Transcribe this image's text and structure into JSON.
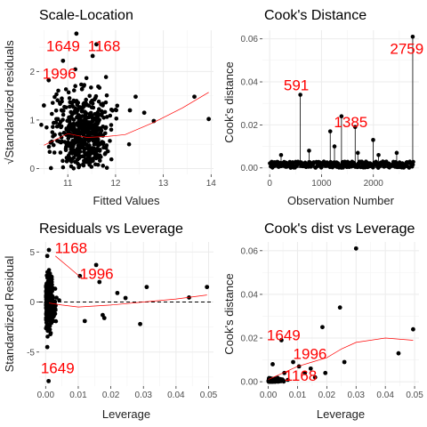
{
  "chart_data": [
    {
      "type": "scatter",
      "title": "Scale-Location",
      "xlabel": "Fitted Values",
      "ylabel": "√Standardized residuals",
      "xlim": [
        10.4,
        14.05
      ],
      "ylim": [
        -0.12,
        2.85
      ],
      "xticks": [
        "11",
        "12",
        "13",
        "14"
      ],
      "xtick_values": [
        11,
        12,
        13,
        14
      ],
      "yticks": [
        "0",
        "1",
        "2"
      ],
      "ytick_values": [
        0,
        1,
        2
      ],
      "grid": true,
      "cloud": {
        "x_center": 11.3,
        "x_spread": 0.3,
        "y_center": 0.72,
        "y_spread": 0.42,
        "count": 520
      },
      "points": [
        {
          "x": 10.9,
          "y": 2.22
        },
        {
          "x": 11.52,
          "y": 2.32
        },
        {
          "x": 11.6,
          "y": 2.56
        },
        {
          "x": 10.6,
          "y": 1.82
        },
        {
          "x": 11.18,
          "y": 2.78
        },
        {
          "x": 12.6,
          "y": 1.15
        },
        {
          "x": 13.65,
          "y": 1.48
        },
        {
          "x": 13.95,
          "y": 1.02
        },
        {
          "x": 12.42,
          "y": 1.48
        },
        {
          "x": 12.8,
          "y": 0.98
        },
        {
          "x": 12.3,
          "y": 1.2
        },
        {
          "x": 10.5,
          "y": 1.3
        }
      ],
      "smooth": {
        "x": [
          10.5,
          11.0,
          11.4,
          11.8,
          12.2,
          12.8,
          13.4,
          13.95
        ],
        "y": [
          0.48,
          0.72,
          0.64,
          0.66,
          0.7,
          0.95,
          1.25,
          1.57
        ]
      },
      "annotations": [
        {
          "text": "1649",
          "x": 10.55,
          "y": 2.42
        },
        {
          "text": "1168",
          "x": 11.42,
          "y": 2.42
        },
        {
          "text": "1996",
          "x": 10.47,
          "y": 1.85
        }
      ]
    },
    {
      "type": "scatter",
      "title": "Cook's Distance",
      "xlabel": "Observation Number",
      "ylabel": "Cook's distance",
      "xlim": [
        -140,
        2880
      ],
      "ylim": [
        -0.003,
        0.064
      ],
      "xticks": [
        "0",
        "1000",
        "2000"
      ],
      "xtick_values": [
        0,
        1000,
        2000
      ],
      "yticks": [
        "0.00",
        "0.02",
        "0.04",
        "0.06"
      ],
      "ytick_values": [
        0,
        0.02,
        0.04,
        0.06
      ],
      "grid": true,
      "style": "stems",
      "base": {
        "count": 230,
        "max": 0.003
      },
      "spikes": [
        {
          "x": 591,
          "y": 0.034
        },
        {
          "x": 1168,
          "y": 0.017
        },
        {
          "x": 1385,
          "y": 0.024
        },
        {
          "x": 1649,
          "y": 0.019
        },
        {
          "x": 1996,
          "y": 0.013
        },
        {
          "x": 2759,
          "y": 0.061
        },
        {
          "x": 220,
          "y": 0.006
        },
        {
          "x": 760,
          "y": 0.008
        },
        {
          "x": 1250,
          "y": 0.01
        },
        {
          "x": 1700,
          "y": 0.007
        },
        {
          "x": 2100,
          "y": 0.006
        },
        {
          "x": 2450,
          "y": 0.007
        }
      ],
      "annotations": [
        {
          "text": "591",
          "x": 270,
          "y": 0.036
        },
        {
          "text": "1385",
          "x": 1240,
          "y": 0.019
        },
        {
          "text": "2759",
          "x": 2320,
          "y": 0.053
        }
      ]
    },
    {
      "type": "scatter",
      "title": "Residuals vs Leverage",
      "xlabel": "Leverage",
      "ylabel": "Standardized Residual",
      "xlim": [
        -0.002,
        0.0515
      ],
      "ylim": [
        -8.4,
        6.0
      ],
      "xticks": [
        "0.00",
        "0.01",
        "0.02",
        "0.03",
        "0.04",
        "0.05"
      ],
      "xtick_values": [
        0,
        0.01,
        0.02,
        0.03,
        0.04,
        0.05
      ],
      "yticks": [
        "-5",
        "0",
        "5"
      ],
      "ytick_values": [
        -5,
        0,
        5
      ],
      "grid": true,
      "hline": 0,
      "cloud": {
        "x_center": 0.0012,
        "x_spread": 0.0012,
        "y_center": 0.0,
        "y_spread": 1.1,
        "count": 420
      },
      "points": [
        {
          "x": 0.001,
          "y": 5.2
        },
        {
          "x": 0.0009,
          "y": -7.9
        },
        {
          "x": 0.0105,
          "y": 2.6
        },
        {
          "x": 0.0155,
          "y": 3.7
        },
        {
          "x": 0.0165,
          "y": 2.0
        },
        {
          "x": 0.018,
          "y": -1.6
        },
        {
          "x": 0.022,
          "y": 0.9
        },
        {
          "x": 0.0245,
          "y": 0.4
        },
        {
          "x": 0.031,
          "y": 1.5
        },
        {
          "x": 0.029,
          "y": -2.2
        },
        {
          "x": 0.0175,
          "y": -1.3
        },
        {
          "x": 0.012,
          "y": -1.9
        },
        {
          "x": 0.0495,
          "y": 1.5
        },
        {
          "x": 0.044,
          "y": 0.45
        },
        {
          "x": 0.0005,
          "y": -4.5
        },
        {
          "x": 0.0005,
          "y": 4.6
        }
      ],
      "smooth": {
        "x": [
          0.001,
          0.005,
          0.01,
          0.02,
          0.03,
          0.04,
          0.0495
        ],
        "y": [
          -0.1,
          -0.3,
          -0.5,
          -0.3,
          0.0,
          0.3,
          0.7
        ]
      },
      "smooth2": {
        "x": [
          0.003,
          0.007,
          0.011
        ],
        "y": [
          4.6,
          3.5,
          2.4
        ]
      },
      "annotations": [
        {
          "text": "1168",
          "x": 0.0028,
          "y": 4.9
        },
        {
          "text": "1996",
          "x": 0.0105,
          "y": 2.3
        },
        {
          "text": "1649",
          "x": -0.0015,
          "y": -7.1
        }
      ]
    },
    {
      "type": "scatter",
      "title": "Cook's dist vs Leverage",
      "xlabel": "Leverage",
      "ylabel": "Cook's distance",
      "xlim": [
        -0.002,
        0.0515
      ],
      "ylim": [
        -0.002,
        0.064
      ],
      "xticks": [
        "0.00",
        "0.01",
        "0.02",
        "0.03",
        "0.04",
        "0.05"
      ],
      "xtick_values": [
        0,
        0.01,
        0.02,
        0.03,
        0.04,
        0.05
      ],
      "yticks": [
        "0.00",
        "0.02",
        "0.04",
        "0.06"
      ],
      "ytick_values": [
        0,
        0.02,
        0.04,
        0.06
      ],
      "grid": true,
      "cloud": {
        "x_center": 0.0022,
        "x_spread": 0.0022,
        "y_center": 0.0005,
        "y_spread": 0.0006,
        "count": 300
      },
      "points": [
        {
          "x": 0.03,
          "y": 0.061
        },
        {
          "x": 0.0245,
          "y": 0.034
        },
        {
          "x": 0.0495,
          "y": 0.024
        },
        {
          "x": 0.0185,
          "y": 0.025
        },
        {
          "x": 0.0045,
          "y": 0.019
        },
        {
          "x": 0.0105,
          "y": 0.007
        },
        {
          "x": 0.0145,
          "y": 0.006
        },
        {
          "x": 0.0195,
          "y": 0.004
        },
        {
          "x": 0.026,
          "y": 0.009
        },
        {
          "x": 0.0445,
          "y": 0.013
        },
        {
          "x": 0.0015,
          "y": 0.008
        },
        {
          "x": 0.0055,
          "y": 0.004
        },
        {
          "x": 0.0085,
          "y": 0.009
        },
        {
          "x": 0.0125,
          "y": 0.004
        },
        {
          "x": 0.016,
          "y": 0.002
        }
      ],
      "smooth": {
        "x": [
          0.0,
          0.005,
          0.01,
          0.015,
          0.02,
          0.025,
          0.03,
          0.04,
          0.0495
        ],
        "y": [
          0.001,
          0.004,
          0.007,
          0.009,
          0.011,
          0.015,
          0.018,
          0.02,
          0.019
        ]
      },
      "annotations": [
        {
          "text": "1649",
          "x": -0.0005,
          "y": 0.019
        },
        {
          "text": "1996",
          "x": 0.0085,
          "y": 0.0105
        },
        {
          "text": "1168",
          "x": 0.0055,
          "y": 0.0005
        }
      ]
    }
  ]
}
